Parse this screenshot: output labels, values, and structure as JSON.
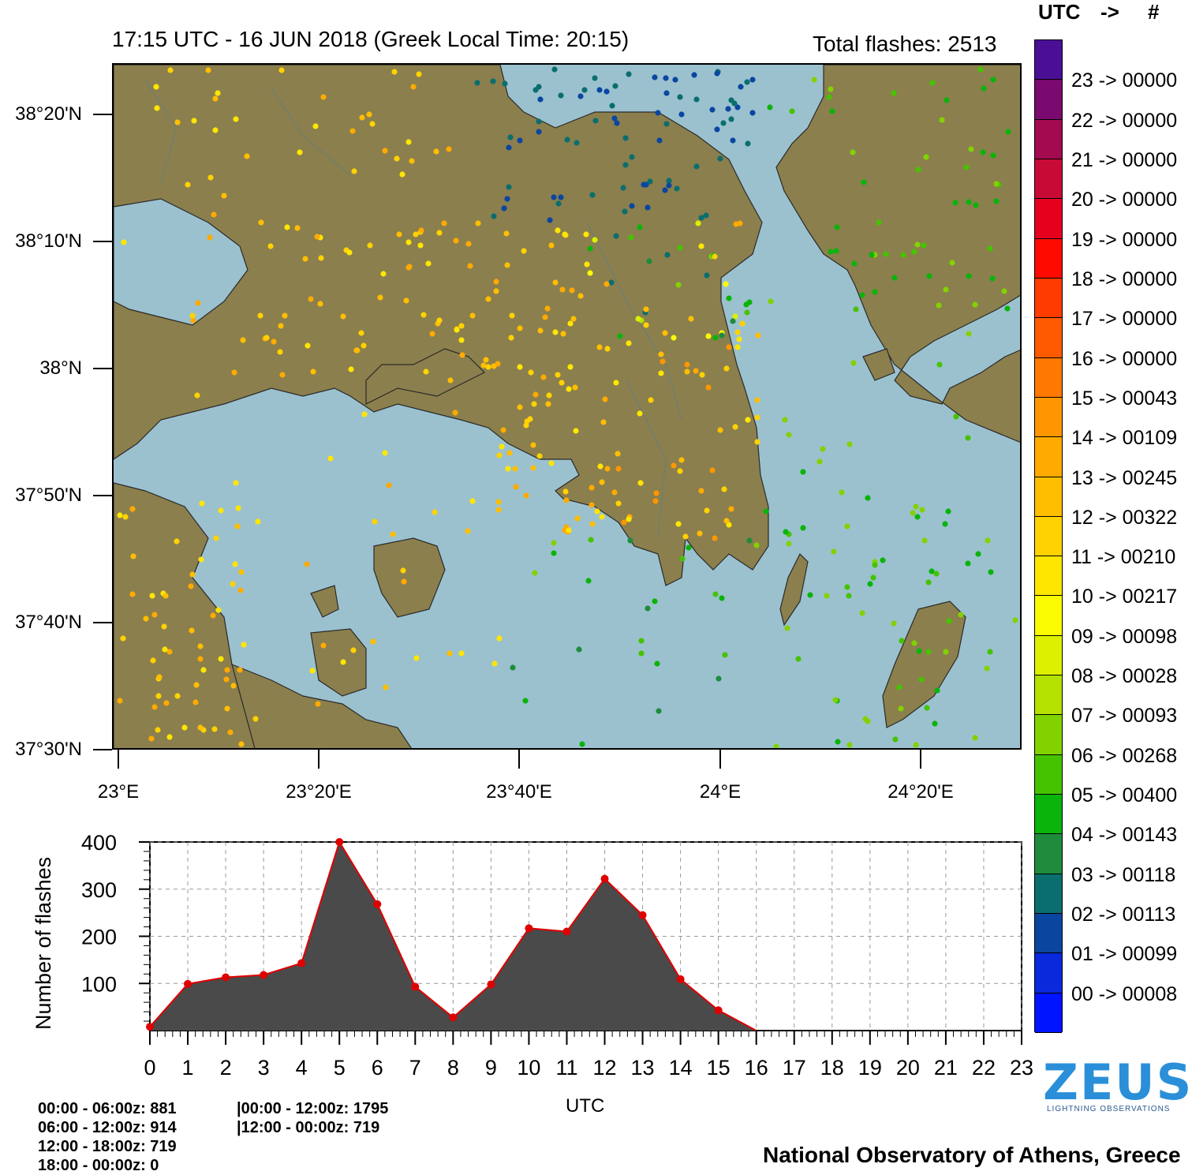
{
  "header": {
    "title": "17:15 UTC - 16  JUN 2018 (Greek Local Time: 20:15)",
    "total": "Total flashes: 2513"
  },
  "map": {
    "lat_labels": [
      "38°20'N",
      "38°10'N",
      "38°N",
      "37°50'N",
      "37°40'N",
      "37°30'N"
    ],
    "lon_labels": [
      "23°E",
      "23°20'E",
      "23°40'E",
      "24°E",
      "24°20'E"
    ],
    "land_color": "#8b7f4d",
    "sea_color": "#9bc1cf"
  },
  "legend": {
    "head_utc": "UTC",
    "head_arrow": "->",
    "head_hash": "#",
    "entries": [
      {
        "label": "23 -> 00000",
        "color": "#4b0f96"
      },
      {
        "label": "22 -> 00000",
        "color": "#7a0a70"
      },
      {
        "label": "21 -> 00000",
        "color": "#a30a50"
      },
      {
        "label": "20 -> 00000",
        "color": "#c80a36"
      },
      {
        "label": "19 -> 00000",
        "color": "#e6001e"
      },
      {
        "label": "18 -> 00000",
        "color": "#ff0a00"
      },
      {
        "label": "17 -> 00000",
        "color": "#ff3c00"
      },
      {
        "label": "16 -> 00000",
        "color": "#ff5a00"
      },
      {
        "label": "15 -> 00043",
        "color": "#ff7800"
      },
      {
        "label": "14 -> 00109",
        "color": "#ff9600"
      },
      {
        "label": "13 -> 00245",
        "color": "#ffaa00"
      },
      {
        "label": "12 -> 00322",
        "color": "#ffbe00"
      },
      {
        "label": "11 -> 00210",
        "color": "#ffd200"
      },
      {
        "label": "10 -> 00217",
        "color": "#ffe600"
      },
      {
        "label": "09 -> 00098",
        "color": "#fafa00"
      },
      {
        "label": "08 -> 00028",
        "color": "#dcf000"
      },
      {
        "label": "07 -> 00093",
        "color": "#b4e100"
      },
      {
        "label": "06 -> 00268",
        "color": "#82d200"
      },
      {
        "label": "05 -> 00400",
        "color": "#46c300"
      },
      {
        "label": "04 -> 00143",
        "color": "#0ab40a"
      },
      {
        "label": "03 -> 00118",
        "color": "#1e8c3c"
      },
      {
        "label": "02 -> 00113",
        "color": "#0a6e6e"
      },
      {
        "label": "01 -> 00099",
        "color": "#0a46a0"
      },
      {
        "label": "00 -> 00008",
        "color": "#0a28dc"
      },
      {
        "label": "",
        "color": "#0014ff"
      }
    ]
  },
  "chart_data": {
    "type": "area",
    "x": [
      0,
      1,
      2,
      3,
      4,
      5,
      6,
      7,
      8,
      9,
      10,
      11,
      12,
      13,
      14,
      15,
      16
    ],
    "values": [
      8,
      99,
      113,
      118,
      143,
      400,
      268,
      93,
      28,
      98,
      217,
      210,
      322,
      245,
      109,
      43,
      0
    ],
    "x_ticks": [
      "0",
      "1",
      "2",
      "3",
      "4",
      "5",
      "6",
      "7",
      "8",
      "9",
      "10",
      "11",
      "12",
      "13",
      "14",
      "15",
      "16",
      "17",
      "18",
      "19",
      "20",
      "21",
      "22",
      "23"
    ],
    "y_ticks": [
      "100",
      "200",
      "300",
      "400"
    ],
    "xlabel": "UTC",
    "ylabel": "Number of flashes",
    "ylim": [
      0,
      400
    ],
    "xlim": [
      0,
      23
    ],
    "fill_color": "#4a4a4a",
    "line_color": "#e00000",
    "grid": true
  },
  "stats": {
    "left": [
      "00:00 - 06:00z: 881",
      "06:00 - 12:00z: 914",
      "12:00 - 18:00z: 719",
      "18:00 - 00:00z: 0"
    ],
    "right": [
      "|00:00 - 12:00z: 1795",
      "|12:00 - 00:00z: 719"
    ]
  },
  "branding": {
    "logo_text": "ZEUS",
    "logo_sub": "LIGHTNING OBSERVATIONS",
    "footer": "National Observatory of Athens, Greece"
  }
}
